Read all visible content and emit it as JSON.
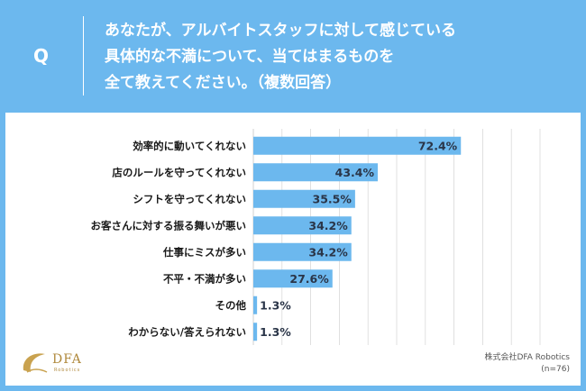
{
  "header": {
    "q_label": "Q",
    "question_lines": [
      "あなたが、アルバイトスタッフに対して感じている",
      "具体的な不満について、当てはまるものを",
      "全て教えてください。（複数回答）"
    ]
  },
  "footer": {
    "company": "株式会社DFA Robotics",
    "sample": "(n=76)",
    "logo_text": "DFA",
    "logo_sub": "Robotics"
  },
  "colors": {
    "header_bg": "#6cb8ee",
    "bar": "#6cb8ee",
    "grid": "#d9d9d9"
  },
  "chart_data": {
    "type": "bar",
    "orientation": "horizontal",
    "categories": [
      "効率的に動いてくれない",
      "店のルールを守ってくれない",
      "シフトを守ってくれない",
      "お客さんに対する振る舞いが悪い",
      "仕事にミスが多い",
      "不平・不満が多い",
      "その他",
      "わからない/答えられない"
    ],
    "values": [
      72.4,
      43.4,
      35.5,
      34.2,
      34.2,
      27.6,
      1.3,
      1.3
    ],
    "value_labels": [
      "72.4%",
      "43.4%",
      "35.5%",
      "34.2%",
      "34.2%",
      "27.6%",
      "1.3%",
      "1.3%"
    ],
    "xlim": [
      0,
      100
    ],
    "grid": true,
    "legend": "none"
  }
}
